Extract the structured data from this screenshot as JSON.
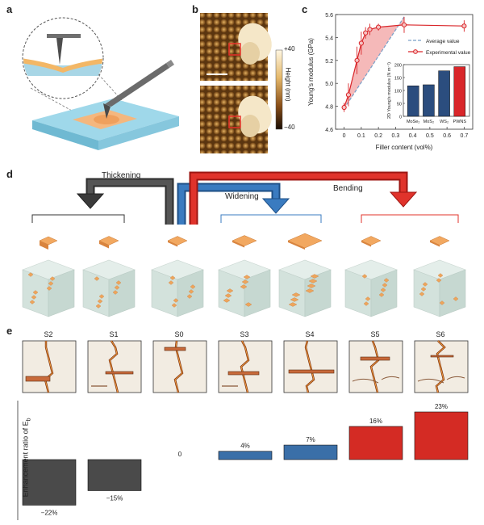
{
  "panels": {
    "a": "a",
    "b": "b",
    "c": "c",
    "d": "d",
    "e": "e"
  },
  "panel_b": {
    "colorbar_top": "+40",
    "colorbar_bottom": "−40",
    "colorbar_label": "Height (nm)"
  },
  "panel_c": {
    "ylabel": "Young's modulus (GPa)",
    "xlabel": "Filler content (vol%)",
    "legend": [
      "Average value",
      "Experimental value"
    ],
    "inset_ylabel": "2D Young's modulus (N m⁻¹)",
    "colors": {
      "experimental": "#d9262a",
      "average": "#7aa0c8",
      "fill": "#f2a8a8"
    }
  },
  "panel_d": {
    "labels": {
      "thickening": "Thickening",
      "widening": "Widening",
      "bending": "Bending"
    },
    "colors": {
      "thickening": "#3a3a3a",
      "widening": "#2f6fb0",
      "bending": "#d42b24"
    }
  },
  "panel_e": {
    "samples": [
      "S2",
      "S1",
      "S0",
      "S3",
      "S4",
      "S5",
      "S6"
    ],
    "ylabel": "Enhancement ratio of E",
    "ylabel_sub": "b",
    "bar_labels": [
      "−22%",
      "−15%",
      "0",
      "4%",
      "7%",
      "16%",
      "23%"
    ]
  },
  "chart_data": [
    {
      "type": "line",
      "xlabel": "Filler content (vol%)",
      "ylabel": "Young's modulus (GPa)",
      "xlim": [
        -0.05,
        0.75
      ],
      "ylim": [
        4.6,
        5.6
      ],
      "xticks": [
        "0",
        "0.1",
        "0.2",
        "0.3",
        "0.4",
        "0.5",
        "0.6",
        "0.7"
      ],
      "yticks": [
        "4.6",
        "4.8",
        "5.0",
        "5.2",
        "5.4",
        "5.6"
      ],
      "legend_position": "top-right",
      "series": [
        {
          "name": "Average value",
          "x": [
            0,
            0.35
          ],
          "y": [
            4.78,
            5.58
          ]
        },
        {
          "name": "Experimental value",
          "x": [
            0,
            0.025,
            0.075,
            0.1,
            0.125,
            0.15,
            0.2,
            0.35,
            0.7
          ],
          "y": [
            4.79,
            4.9,
            5.2,
            5.35,
            5.44,
            5.47,
            5.49,
            5.51,
            5.5
          ],
          "err": [
            0.04,
            0.1,
            0.12,
            0.1,
            0.05,
            0.05,
            0.03,
            0.07,
            0.05
          ]
        }
      ]
    },
    {
      "type": "bar",
      "ylabel": "2D Young's modulus (N m⁻¹)",
      "categories": [
        "MoSe₂",
        "MoS₂",
        "WS₂",
        "PWNS"
      ],
      "values": [
        118,
        122,
        176,
        192
      ],
      "ylim": [
        0,
        200
      ],
      "yticks": [
        "0",
        "50",
        "100",
        "150",
        "200"
      ],
      "colors": [
        "#2b4d7e",
        "#2b4d7e",
        "#2b4d7e",
        "#d9262a"
      ]
    },
    {
      "type": "bar",
      "ylabel": "Enhancement ratio of Eb",
      "categories": [
        "S2",
        "S1",
        "S0",
        "S3",
        "S4",
        "S5",
        "S6"
      ],
      "values": [
        -22,
        -15,
        0,
        4,
        7,
        16,
        23
      ],
      "colors": [
        "#4a4a4a",
        "#4a4a4a",
        "#4a4a4a",
        "#3a6fa8",
        "#3a6fa8",
        "#d42b24",
        "#d42b24"
      ]
    }
  ]
}
